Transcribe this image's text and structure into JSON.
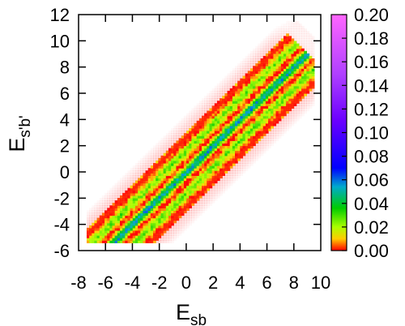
{
  "chart_data": {
    "type": "heatmap",
    "title": "",
    "xlabel": "E",
    "xlabel_sub": "sb",
    "ylabel": "E",
    "ylabel_sub": "s'b'",
    "xlim": [
      -8,
      10
    ],
    "ylim": [
      -6,
      12
    ],
    "x_ticks": [
      "-8",
      "-6",
      "-4",
      "-2",
      "0",
      "2",
      "4",
      "6",
      "8",
      "10"
    ],
    "y_ticks": [
      "12",
      "10",
      "8",
      "6",
      "4",
      "2",
      "0",
      "-2",
      "-4",
      "-6"
    ],
    "grid": false,
    "colorbar": {
      "range": [
        0.0,
        0.2
      ],
      "ticks": [
        "0.20",
        "0.18",
        "0.16",
        "0.14",
        "0.12",
        "0.10",
        "0.08",
        "0.06",
        "0.04",
        "0.02",
        "0.00"
      ],
      "colors": [
        "#ff0000",
        "#ffff00",
        "#00cc00",
        "#00aacc",
        "#0000ff",
        "#8000ff",
        "#ff66ff"
      ]
    },
    "data_description_band": {
      "centerline": "E_s'b' ≈ E_sb",
      "x_extent": [
        -6,
        8
      ],
      "band_halfwidth": 3.2,
      "peak_density_value": 0.04
    }
  }
}
